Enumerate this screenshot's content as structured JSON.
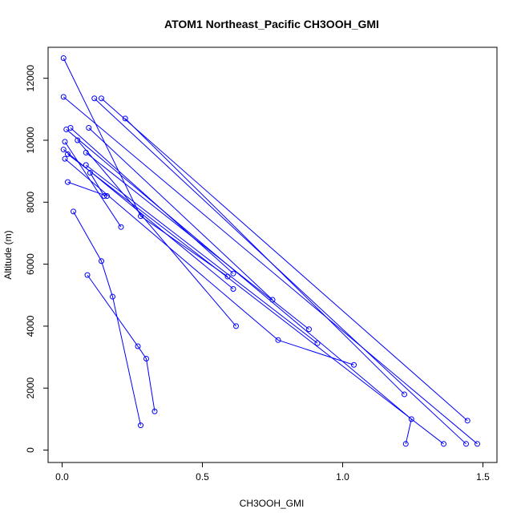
{
  "chart_data": {
    "type": "line",
    "title": "ATOM1 Northeast_Pacific CH3OOH_GMI",
    "xlabel": "CH3OOH_GMI",
    "ylabel": "Altitude (m)",
    "xlim": [
      -0.05,
      1.55
    ],
    "ylim": [
      -400,
      13000
    ],
    "x_ticks": [
      0.0,
      0.5,
      1.0,
      1.5
    ],
    "x_tick_labels": [
      "0.0",
      "0.5",
      "1.0",
      "1.5"
    ],
    "y_ticks": [
      0,
      2000,
      4000,
      6000,
      8000,
      10000,
      12000
    ],
    "y_tick_labels": [
      "0",
      "2000",
      "4000",
      "6000",
      "8000",
      "10000",
      "12000"
    ],
    "grid": false,
    "series": [
      {
        "color": "#0000ff",
        "marker": "open-circle",
        "segments": [
          {
            "x": [
              0.005,
              0.28,
              0.59
            ],
            "y": [
              12650,
              7550,
              5600
            ]
          },
          {
            "x": [
              0.005,
              1.48
            ],
            "y": [
              11400,
              200
            ]
          },
          {
            "x": [
              0.115,
              1.44
            ],
            "y": [
              11350,
              200
            ]
          },
          {
            "x": [
              0.14,
              1.445
            ],
            "y": [
              11350,
              950
            ]
          },
          {
            "x": [
              0.225,
              1.22
            ],
            "y": [
              10700,
              1800
            ]
          },
          {
            "x": [
              0.015,
              1.245,
              1.225
            ],
            "y": [
              10350,
              1000,
              200
            ]
          },
          {
            "x": [
              0.03,
              0.61
            ],
            "y": [
              10400,
              5700
            ]
          },
          {
            "x": [
              0.095,
              0.75
            ],
            "y": [
              10400,
              4850
            ]
          },
          {
            "x": [
              0.055,
              0.62
            ],
            "y": [
              10000,
              4000
            ]
          },
          {
            "x": [
              0.01,
              0.21
            ],
            "y": [
              9950,
              7200
            ]
          },
          {
            "x": [
              0.005,
              0.61
            ],
            "y": [
              9700,
              5200
            ]
          },
          {
            "x": [
              0.085,
              0.88
            ],
            "y": [
              9600,
              3900
            ]
          },
          {
            "x": [
              0.02,
              1.36
            ],
            "y": [
              9550,
              200
            ]
          },
          {
            "x": [
              0.01,
              0.77,
              1.04
            ],
            "y": [
              9400,
              3550,
              2750
            ]
          },
          {
            "x": [
              0.085,
              0.91
            ],
            "y": [
              9200,
              3450
            ]
          },
          {
            "x": [
              0.1,
              0.15
            ],
            "y": [
              8950,
              8200
            ]
          },
          {
            "x": [
              0.02,
              0.16
            ],
            "y": [
              8650,
              8200
            ]
          },
          {
            "x": [
              0.04,
              0.14,
              0.18,
              0.28
            ],
            "y": [
              7700,
              6100,
              4950,
              800
            ]
          },
          {
            "x": [
              0.09,
              0.27,
              0.3,
              0.33
            ],
            "y": [
              5650,
              3350,
              2950,
              1250
            ]
          }
        ]
      }
    ]
  }
}
